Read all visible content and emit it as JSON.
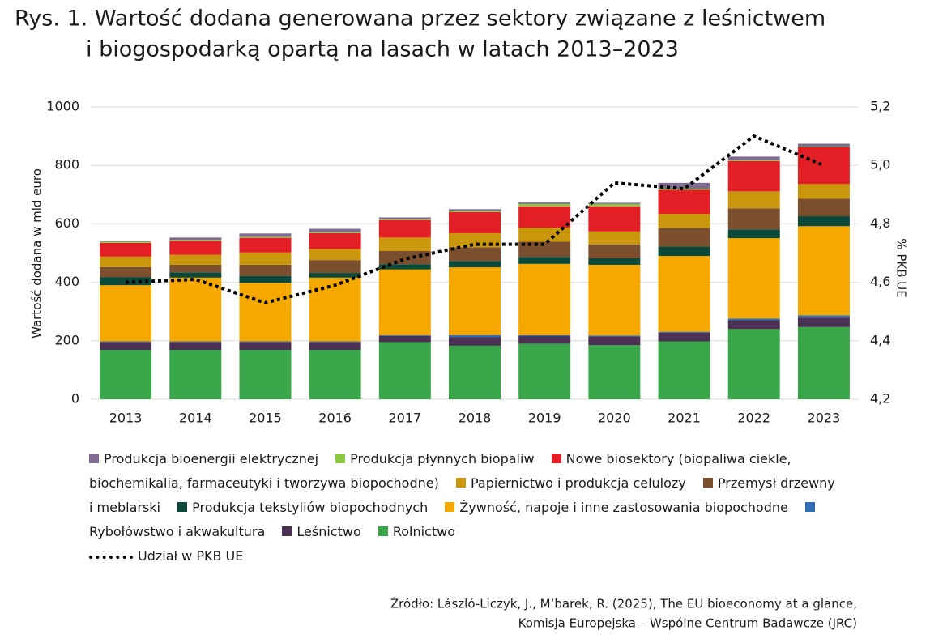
{
  "chart_data": {
    "type": "stacked-bar-line",
    "title": [
      "Rys. 1. Wartość dodana generowana przez sektory związane z leśnictwem",
      "i biogospodarką opartą na lasach w latach 2013–2023"
    ],
    "ylabel": "Wartość dodana w mld euro",
    "y2label": "% PKB UE",
    "categories": [
      "2013",
      "2014",
      "2015",
      "2016",
      "2017",
      "2018",
      "2019",
      "2020",
      "2021",
      "2022",
      "2023"
    ],
    "ylim": [
      0,
      1000
    ],
    "yticks": [
      0,
      200,
      400,
      600,
      800,
      1000
    ],
    "y2lim": [
      4.2,
      5.2
    ],
    "y2ticks": [
      {
        "value": 4.2,
        "label": "4,2"
      },
      {
        "value": 4.4,
        "label": "4,4"
      },
      {
        "value": 4.6,
        "label": "4,6"
      },
      {
        "value": 4.8,
        "label": "4,8"
      },
      {
        "value": 5.0,
        "label": "5,0"
      },
      {
        "value": 5.2,
        "label": "5,2"
      }
    ],
    "grid": true,
    "series": [
      {
        "name": "Produkcja bioenergii elektrycznej",
        "color": "#7e6b8f",
        "values": [
          3,
          8,
          12,
          12,
          6,
          6,
          5,
          4,
          20,
          12,
          10
        ]
      },
      {
        "name": "Produkcja płynnych biopaliw",
        "color": "#8dc63f",
        "values": [
          4,
          3,
          3,
          3,
          3,
          4,
          8,
          8,
          4,
          3,
          2
        ]
      },
      {
        "name": "Nowe biosektory (biopaliwa ciekle, biochemikalia, farmaceutyki i tworzywa biopochodne)",
        "color": "#e31e24",
        "values": [
          47,
          48,
          50,
          54,
          60,
          72,
          73,
          86,
          82,
          104,
          126
        ]
      },
      {
        "name": "Papiernictwo i produkcja celulozy",
        "color": "#c9960c",
        "values": [
          36,
          34,
          42,
          38,
          46,
          48,
          48,
          44,
          48,
          58,
          50
        ]
      },
      {
        "name": "Przemysł drzewny i meblarski",
        "color": "#7b4f2e",
        "values": [
          34,
          26,
          38,
          44,
          45,
          47,
          52,
          48,
          64,
          72,
          60
        ]
      },
      {
        "name": "Produkcja tekstyliów biopochodnych",
        "color": "#0b4a3a",
        "values": [
          28,
          18,
          24,
          16,
          18,
          22,
          24,
          22,
          32,
          30,
          34
        ]
      },
      {
        "name": "Żywność, napoje i inne zastosowania biopochodne",
        "color": "#f5a800",
        "values": [
          192,
          218,
          200,
          218,
          225,
          232,
          244,
          242,
          259,
          275,
          305
        ]
      },
      {
        "name": "Rybołówstwo i akwakultura",
        "color": "#2e6db4",
        "values": [
          2,
          2,
          2,
          2,
          2,
          6,
          3,
          3,
          3,
          6,
          8
        ]
      },
      {
        "name": "Leśnictwo",
        "color": "#4a3052",
        "values": [
          27,
          27,
          27,
          27,
          22,
          30,
          26,
          30,
          30,
          30,
          32
        ]
      },
      {
        "name": "Rolnictwo",
        "color": "#3aa64a",
        "values": [
          169,
          169,
          169,
          169,
          195,
          183,
          190,
          185,
          198,
          240,
          247
        ]
      },
      {
        "name": "Udział w PKB UE",
        "color": "#000000",
        "axis": "y2",
        "style": "dotted",
        "values": [
          4.6,
          4.61,
          4.53,
          4.59,
          4.68,
          4.73,
          4.73,
          4.94,
          4.92,
          5.1,
          5.0
        ]
      }
    ],
    "source": [
      "Źródło: László-Liczyk, J., M’barek, R. (2025), The EU bioeconomy at a glance,",
      "Komisja Europejska – Wspólne Centrum Badawcze (JRC)"
    ]
  }
}
